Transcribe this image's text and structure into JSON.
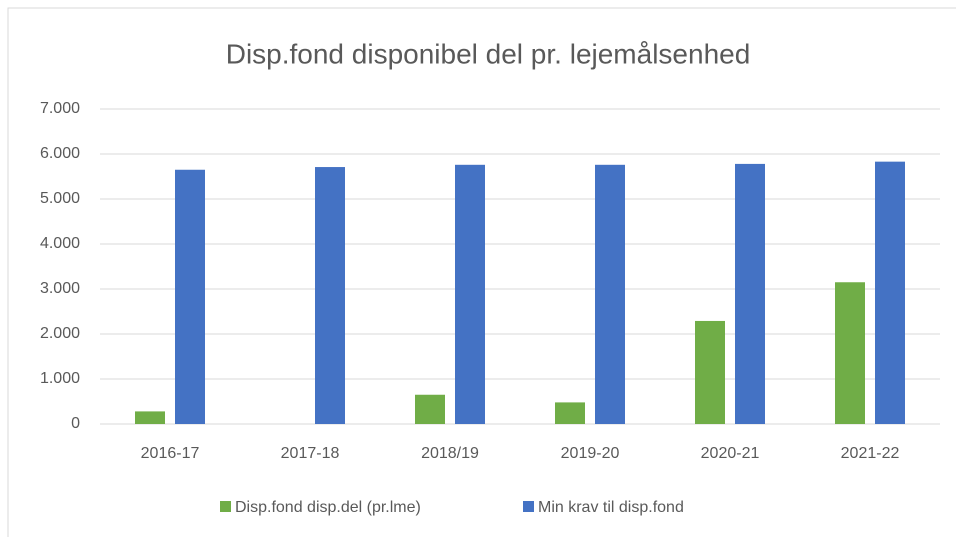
{
  "chart_data": {
    "type": "bar",
    "title": "Disp.fond disponibel del pr. lejemålsenhed",
    "categories": [
      "2016-17",
      "2017-18",
      "2018/19",
      "2019-20",
      "2020-21",
      "2021-22"
    ],
    "series": [
      {
        "name": "Disp.fond disp.del (pr.lme)",
        "color": "#70ad47",
        "values": [
          280,
          0,
          650,
          480,
          2290,
          3150
        ]
      },
      {
        "name": "Min krav til disp.fond",
        "color": "#4472c4",
        "values": [
          5650,
          5710,
          5760,
          5760,
          5780,
          5830
        ]
      }
    ],
    "ylim": [
      0,
      7000
    ],
    "yticks": [
      0,
      {
        "value": 1000,
        "label": "1.000"
      },
      {
        "value": 2000,
        "label": "2.000"
      },
      {
        "value": 3000,
        "label": "3.000"
      },
      {
        "value": 4000,
        "label": "4.000"
      },
      {
        "value": 5000,
        "label": "5.000"
      },
      {
        "value": 6000,
        "label": "6.000"
      },
      {
        "value": 7000,
        "label": "7.000"
      }
    ],
    "grid": true,
    "legend": "bottom"
  }
}
